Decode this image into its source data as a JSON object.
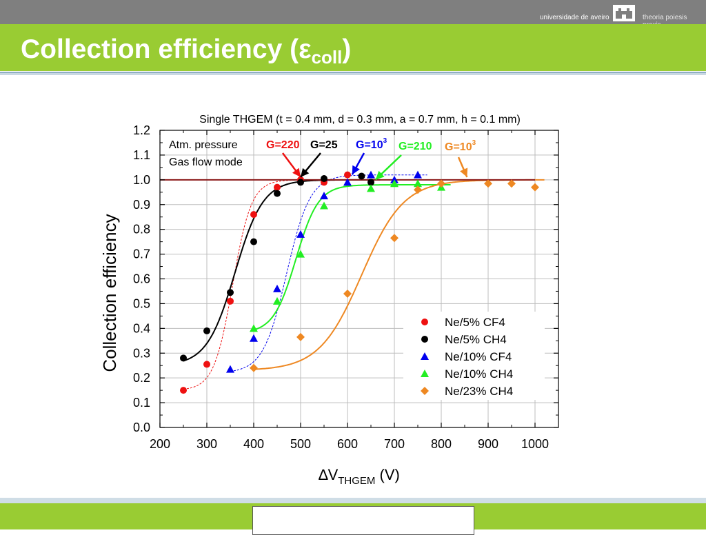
{
  "header": {
    "university": "universidade de aveiro",
    "motto": "theoria poiesis praxis",
    "title_main": "Collection efficiency (ε",
    "title_sub": "coll",
    "title_end": ")"
  },
  "colors": {
    "topbar": "#7f7f7f",
    "accent_green": "#99cc33",
    "red": "#ee1111",
    "black": "#000000",
    "blue": "#0000ee",
    "green": "#22ee22",
    "orange": "#ee8822",
    "reference_line": "#8b1a1a"
  },
  "chart_data": {
    "type": "scatter",
    "title": "Single THGEM (t = 0.4 mm, d = 0.3 mm, a = 0.7 mm, h = 0.1 mm)",
    "xlabel_main": "∆V",
    "xlabel_sub": "THGEM",
    "xlabel_unit": " (V)",
    "ylabel": "Collection efficiency",
    "xlim": [
      200,
      1050
    ],
    "ylim": [
      0,
      1.2
    ],
    "xticks": [
      "200",
      "300",
      "400",
      "500",
      "600",
      "700",
      "800",
      "900",
      "1000"
    ],
    "yticks": [
      "0.0",
      "0.1",
      "0.2",
      "0.3",
      "0.4",
      "0.5",
      "0.6",
      "0.7",
      "0.8",
      "0.9",
      "1.0",
      "1.1",
      "1.2"
    ],
    "grid": true,
    "reference_line_y": 1.0,
    "series": [
      {
        "name": "Ne/5% CF4",
        "marker": "circle",
        "color": "#ee1111",
        "x": [
          250,
          300,
          350,
          400,
          450,
          500,
          550,
          600
        ],
        "y": [
          0.15,
          0.255,
          0.51,
          0.86,
          0.97,
          1.0,
          0.99,
          1.02
        ],
        "fit": {
          "a": 0.15,
          "b": 1.0,
          "x0": 355,
          "w": 20
        }
      },
      {
        "name": "Ne/5% CH4",
        "marker": "circle",
        "color": "#000000",
        "x": [
          250,
          300,
          350,
          400,
          450,
          500,
          550,
          630,
          650
        ],
        "y": [
          0.28,
          0.39,
          0.545,
          0.75,
          0.945,
          0.99,
          1.005,
          1.015,
          0.99
        ],
        "fit": {
          "a": 0.25,
          "b": 1.0,
          "x0": 360,
          "w": 30
        }
      },
      {
        "name": "Ne/10% CF4",
        "marker": "triangle",
        "color": "#0000ee",
        "x": [
          350,
          400,
          450,
          500,
          550,
          600,
          650,
          700,
          750
        ],
        "y": [
          0.235,
          0.36,
          0.56,
          0.78,
          0.935,
          0.99,
          1.02,
          1.0,
          1.02
        ],
        "fit": {
          "a": 0.22,
          "b": 1.02,
          "x0": 470,
          "w": 25
        }
      },
      {
        "name": "Ne/10% CH4",
        "marker": "triangle",
        "color": "#22ee22",
        "x": [
          400,
          450,
          500,
          550,
          650,
          700,
          750,
          800
        ],
        "y": [
          0.4,
          0.51,
          0.7,
          0.895,
          0.965,
          0.985,
          0.985,
          0.97
        ],
        "fit": {
          "a": 0.38,
          "b": 0.98,
          "x0": 490,
          "w": 24
        }
      },
      {
        "name": "Ne/23% CH4",
        "marker": "diamond",
        "color": "#ee8822",
        "x": [
          400,
          500,
          600,
          700,
          750,
          800,
          900,
          950,
          1000
        ],
        "y": [
          0.24,
          0.365,
          0.54,
          0.765,
          0.96,
          0.985,
          0.985,
          0.985,
          0.97
        ],
        "fit": {
          "a": 0.23,
          "b": 1.0,
          "x0": 630,
          "w": 45
        }
      }
    ],
    "annotations": {
      "conditions": [
        "Atm. pressure",
        "Gas flow mode"
      ],
      "gains": [
        {
          "text": "G=220",
          "sup": "",
          "color": "#ee1111",
          "target_x": 500,
          "target_y": 1.0
        },
        {
          "text": "G=25",
          "sup": "",
          "color": "#000000",
          "target_x": 500,
          "target_y": 1.0
        },
        {
          "text": "G=10",
          "sup": "3",
          "color": "#0000ee",
          "target_x": 610,
          "target_y": 1.01
        },
        {
          "text": "G=210",
          "sup": "",
          "color": "#22ee22",
          "target_x": 660,
          "target_y": 0.99
        },
        {
          "text": "G=10",
          "sup": "3",
          "color": "#ee8822",
          "target_x": 855,
          "target_y": 1.0
        }
      ]
    },
    "legend_position": "lower-right"
  }
}
